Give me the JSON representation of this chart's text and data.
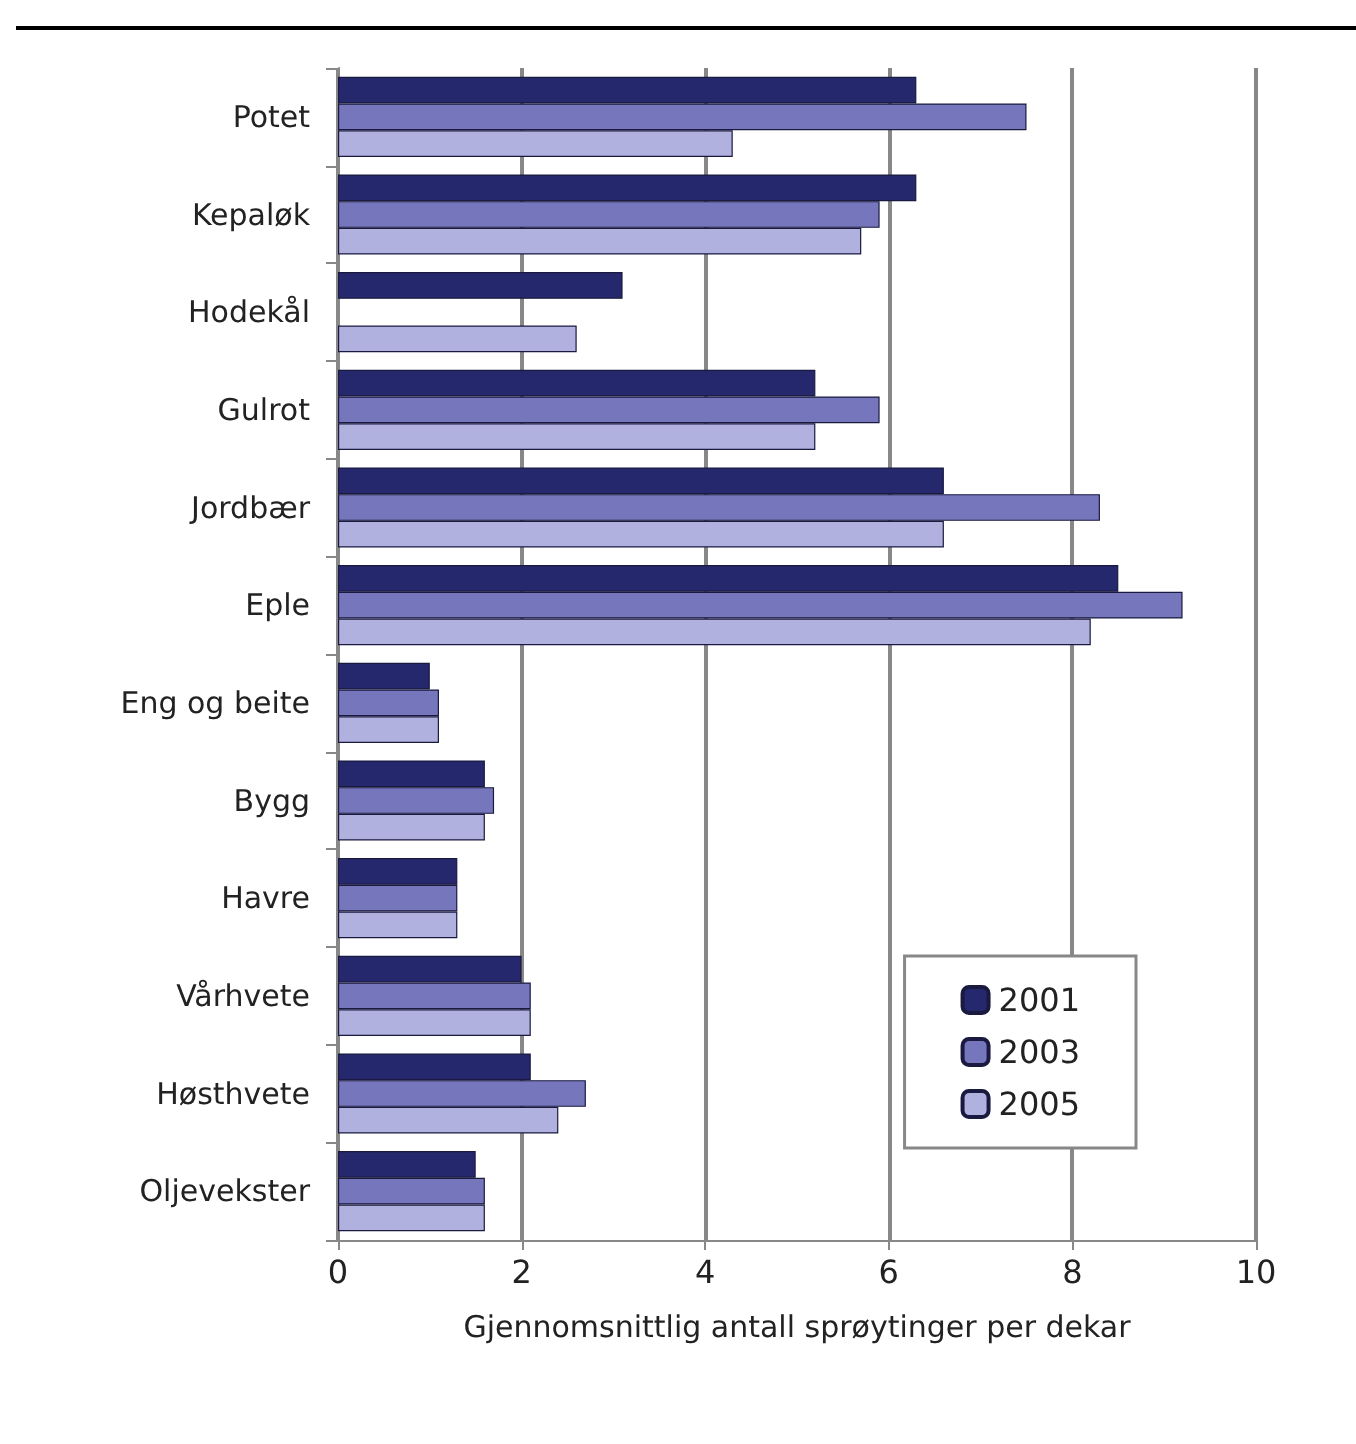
{
  "chart_data": {
    "type": "bar",
    "orientation": "horizontal",
    "xlabel": "Gjennomsnittlig antall sprøytinger per dekar",
    "categories": [
      "Potet",
      "Kepaløk",
      "Hodekål",
      "Gulrot",
      "Jordbær",
      "Eple",
      "Eng og beite",
      "Bygg",
      "Havre",
      "Vårhvete",
      "Høsthvete",
      "Oljevekster"
    ],
    "series": [
      {
        "name": "2001",
        "color": "#26286e",
        "values": [
          6.3,
          6.3,
          3.1,
          5.2,
          6.6,
          8.5,
          1.0,
          1.6,
          1.3,
          2.0,
          2.1,
          1.5
        ]
      },
      {
        "name": "2003",
        "color": "#7676bd",
        "values": [
          7.5,
          5.9,
          null,
          5.9,
          8.3,
          9.2,
          1.1,
          1.7,
          1.3,
          2.1,
          2.7,
          1.6
        ]
      },
      {
        "name": "2005",
        "color": "#b1b1df",
        "values": [
          4.3,
          5.7,
          2.6,
          5.2,
          6.6,
          8.2,
          1.1,
          1.6,
          1.3,
          2.1,
          2.4,
          1.6
        ]
      }
    ],
    "xlim": [
      0,
      10
    ],
    "xticks": [
      0,
      2,
      4,
      6,
      8,
      10
    ],
    "grid": "x",
    "legend": "bottom right"
  }
}
